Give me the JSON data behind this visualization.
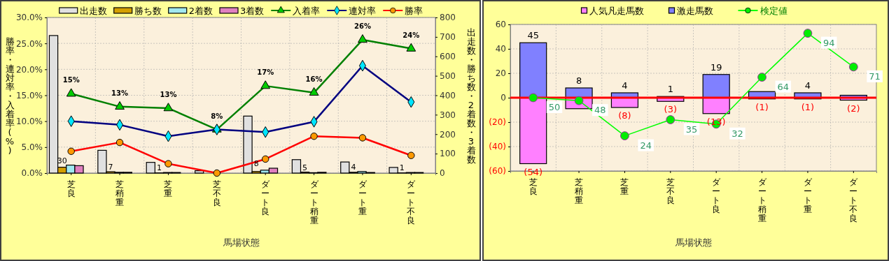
{
  "chart_data": [
    {
      "type": "bar",
      "categories": [
        "芝良",
        "芝稍重",
        "芝重",
        "芝不良",
        "ダート良",
        "ダート稍重",
        "ダート重",
        "ダート不良"
      ],
      "xlabel": "馬場状態",
      "ylabel": "勝率・連対率・入着率(%)",
      "y2label": "出走数・勝ち数・2着数・3着数",
      "ylim": [
        0,
        30
      ],
      "yticks": [
        {
          "value": 0,
          "label": "0.0%"
        },
        {
          "value": 5,
          "label": "5.0%"
        },
        {
          "value": 10,
          "label": "10.0%"
        },
        {
          "value": 15,
          "label": "15.0%"
        },
        {
          "value": 20,
          "label": "20.0%"
        },
        {
          "value": 25,
          "label": "25.0%"
        },
        {
          "value": 30,
          "label": "30.0%"
        }
      ],
      "y2lim": [
        0,
        800
      ],
      "y2ticks": [
        0,
        100,
        200,
        300,
        400,
        500,
        600,
        700,
        800
      ],
      "grid": true,
      "legend": "top",
      "series": [
        {
          "name": "出走数",
          "color": "#e0e0e0",
          "axis": "y2",
          "values": [
            707,
            117,
            55,
            12,
            293,
            69,
            57,
            29
          ]
        },
        {
          "name": "勝ち数",
          "color": "#d4a000",
          "axis": "y2",
          "values": [
            30,
            7,
            1,
            0,
            8,
            5,
            4,
            1
          ],
          "value_labels": [
            "30",
            "7",
            "1",
            null,
            "8",
            "5",
            "4",
            "1"
          ]
        },
        {
          "name": "2着数",
          "color": "#a0e8f0",
          "axis": "y2",
          "values": [
            41,
            4,
            3,
            null,
            15,
            2,
            8,
            3
          ]
        },
        {
          "name": "3着数",
          "color": "#e080c0",
          "axis": "y2",
          "values": [
            38,
            4,
            3,
            0,
            25,
            4,
            3,
            3
          ]
        },
        {
          "name": "入着率",
          "type": "line",
          "color": "#008000",
          "marker": "triangle",
          "axis": "y",
          "values": [
            15.3,
            12.8,
            12.5,
            8.4,
            16.8,
            15.5,
            25.7,
            24.0
          ],
          "value_labels": [
            "15%",
            "13%",
            "13%",
            "8%",
            "17%",
            "16%",
            "26%",
            "24%"
          ]
        },
        {
          "name": "連対率",
          "type": "line",
          "color": "#000080",
          "marker": "diamond",
          "axis": "y",
          "values": [
            10.0,
            9.3,
            7.1,
            8.4,
            7.9,
            9.9,
            20.7,
            13.7
          ]
        },
        {
          "name": "勝率",
          "type": "line",
          "color": "#ff0000",
          "marker": "circle",
          "axis": "y",
          "values": [
            4.2,
            5.9,
            1.8,
            0,
            2.7,
            7.1,
            6.8,
            3.4
          ]
        }
      ]
    },
    {
      "type": "bar",
      "stacked": true,
      "categories": [
        "芝良",
        "芝稍重",
        "芝重",
        "芝不良",
        "ダート良",
        "ダート稍重",
        "ダート重",
        "ダート不良"
      ],
      "xlabel": "馬場状態",
      "ylim": [
        -60,
        60
      ],
      "yticks": [
        {
          "value": -60,
          "label": "(60)"
        },
        {
          "value": -40,
          "label": "(40)"
        },
        {
          "value": -20,
          "label": "(20)"
        },
        0,
        20,
        40,
        60
      ],
      "y2lim": [
        0,
        100
      ],
      "grid": true,
      "legend": "top",
      "ref_lines": [
        {
          "axis": "y",
          "value": 0,
          "color": "#ff0000"
        }
      ],
      "series": [
        {
          "name": "人気凡走馬数",
          "color": "#ff80ff",
          "values": [
            -54,
            -9,
            -8,
            -3,
            -13,
            -1,
            -1,
            -2
          ],
          "value_labels": [
            "(54)",
            null,
            "(8)",
            "(3)",
            "(13)",
            "(1)",
            "(1)",
            "(2)"
          ]
        },
        {
          "name": "激走馬数",
          "color": "#8080ff",
          "values": [
            45,
            8,
            4,
            1,
            19,
            5,
            4,
            2
          ],
          "value_labels": [
            "45",
            "8",
            "4",
            "1",
            "19",
            null,
            "4",
            null
          ]
        },
        {
          "name": "検定値",
          "type": "line",
          "color": "#00ff00",
          "marker": "circle",
          "axis": "y2",
          "values": [
            50,
            48,
            24,
            35,
            32,
            64,
            94,
            71
          ],
          "value_labels": [
            "50",
            "48",
            "24",
            "35",
            "32",
            "64",
            "94",
            "71"
          ]
        }
      ]
    }
  ]
}
